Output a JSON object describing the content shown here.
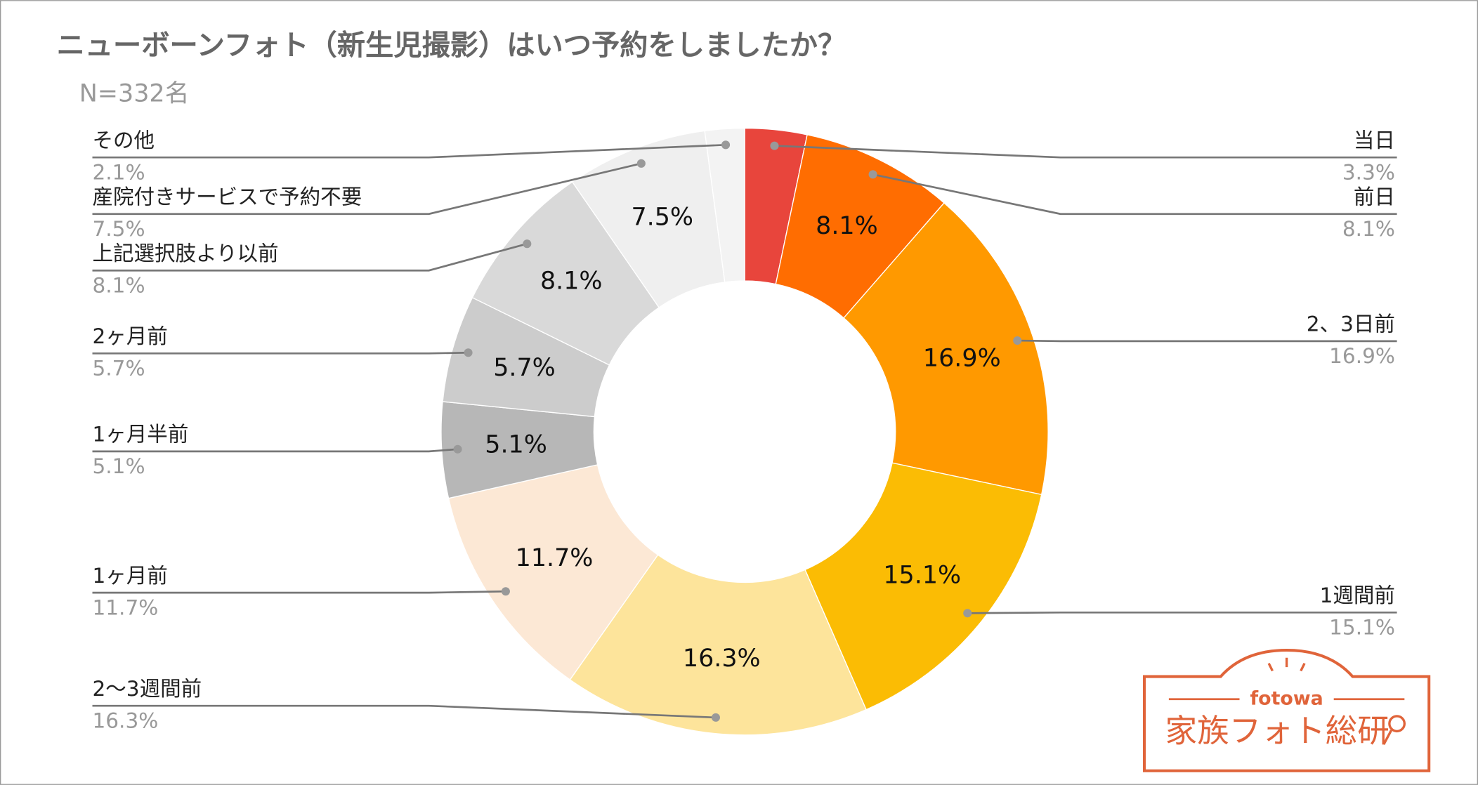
{
  "chart_data": {
    "type": "donut",
    "title": "ニューボーンフォト（新生児撮影）はいつ予約をしましたか？",
    "subtitle": "N=332名",
    "categories": [
      "当日",
      "前日",
      "2、3日前",
      "1週間前",
      "2〜3週間前",
      "1ヶ月前",
      "1ヶ月半前",
      "2ヶ月前",
      "上記選択肢より以前",
      "産院付きサービスで予約不要",
      "その他"
    ],
    "values": [
      3.3,
      8.1,
      16.9,
      15.1,
      16.3,
      11.7,
      5.1,
      5.7,
      8.1,
      7.5,
      2.1
    ],
    "value_labels": [
      "3.3%",
      "8.1%",
      "16.9%",
      "15.1%",
      "16.3%",
      "11.7%",
      "5.1%",
      "5.7%",
      "8.1%",
      "7.5%",
      "2.1%"
    ],
    "colors": [
      "#e8453c",
      "#ff6d01",
      "#ff9900",
      "#fbbc04",
      "#fde49b",
      "#fce8d5",
      "#b7b7b7",
      "#cccccc",
      "#d9d9d9",
      "#efefef",
      "#f3f3f3"
    ]
  },
  "logo": {
    "brand": "fotowa",
    "name": "家族フォト総研"
  }
}
